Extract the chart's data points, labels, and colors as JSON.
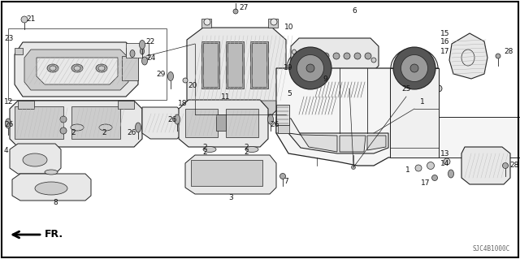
{
  "background_color": "#ffffff",
  "border_color": "#000000",
  "diagram_code": "SJC4B1000C",
  "figsize": [
    6.4,
    3.19
  ],
  "dpi": 100,
  "font_size_labels": 6.5,
  "font_size_code": 5.5,
  "text_color": "#111111",
  "line_color": "#222222",
  "fill_light": "#e8e8e8",
  "fill_mid": "#cccccc",
  "fill_dark": "#aaaaaa",
  "hatch_color": "#888888"
}
